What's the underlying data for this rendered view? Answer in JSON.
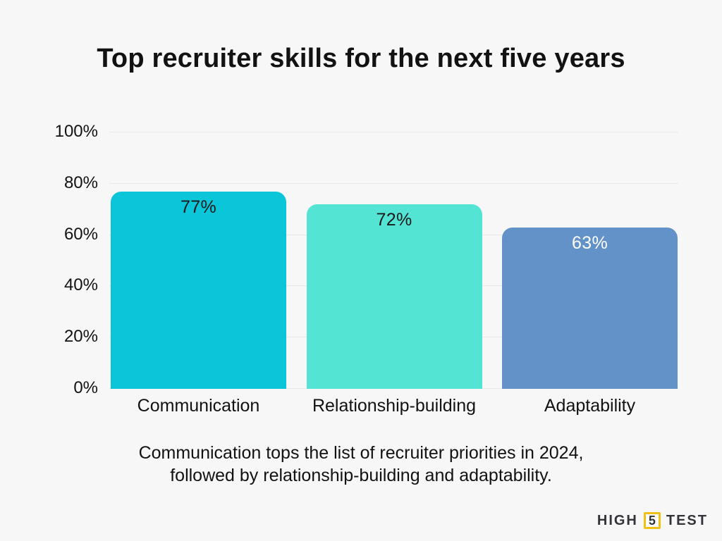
{
  "title": "Top recruiter skills for the next five years",
  "caption": {
    "line1": "Communication tops the list of recruiter priorities in 2024,",
    "line2": "followed by relationship-building and adaptability."
  },
  "logo": {
    "word1": "HIGH",
    "number": "5",
    "word2": "TEST"
  },
  "chart_data": {
    "type": "bar",
    "title": "Top recruiter skills for the next five years",
    "categories": [
      "Communication",
      "Relationship-building",
      "Adaptability"
    ],
    "values": [
      77,
      72,
      63
    ],
    "value_labels": [
      "77%",
      "72%",
      "63%"
    ],
    "bar_colors": [
      "#0bc5d9",
      "#53e4d3",
      "#6292c8"
    ],
    "value_label_colors": [
      "#1a1a1a",
      "#1a1a1a",
      "#ffffff"
    ],
    "xlabel": "",
    "ylabel": "",
    "ylim": [
      0,
      100
    ],
    "y_ticks": [
      0,
      20,
      40,
      60,
      80,
      100
    ],
    "y_tick_labels": [
      "0%",
      "20%",
      "40%",
      "60%",
      "80%",
      "100%"
    ],
    "grid": true,
    "legend": false
  },
  "colors": {
    "background": "#f7f7f8",
    "gridline": "#e8e8e8",
    "text": "#121212",
    "logo_text": "#33343a",
    "logo_box_border": "#f2c116",
    "logo_box_bg": "#fefefe"
  }
}
